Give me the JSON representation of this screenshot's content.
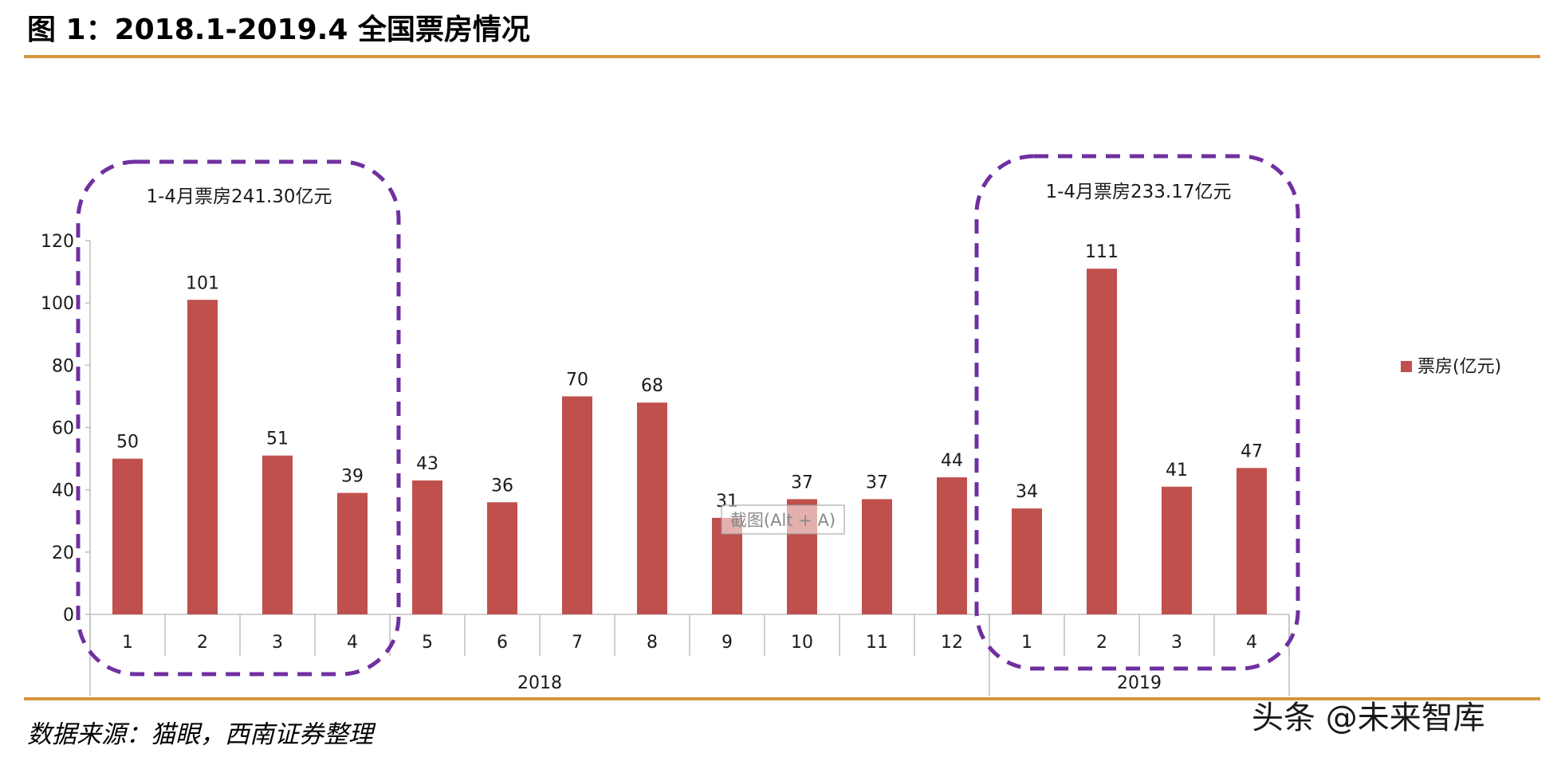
{
  "title": "图 1：2018.1-2019.4 全国票房情况",
  "source": "数据来源：猫眼，西南证券整理",
  "watermark": "头条 @未来智库",
  "tooltip": "截图(Alt + A)",
  "annotations": [
    "1-4月票房241.30亿元",
    "1-4月票房233.17亿元"
  ],
  "colors": {
    "bar": "#c0504d",
    "rule": "#d4963c",
    "dash": "#7030a0"
  },
  "chart_data": {
    "type": "bar",
    "categories": [
      "1",
      "2",
      "3",
      "4",
      "5",
      "6",
      "7",
      "8",
      "9",
      "10",
      "11",
      "12",
      "1",
      "2",
      "3",
      "4"
    ],
    "groups": [
      {
        "label": "2018",
        "count": 12
      },
      {
        "label": "2019",
        "count": 4
      }
    ],
    "series": [
      {
        "name": "票房(亿元)",
        "values": [
          50,
          101,
          51,
          39,
          43,
          36,
          70,
          68,
          31,
          37,
          37,
          44,
          34,
          111,
          41,
          47
        ]
      }
    ],
    "ylim": [
      0,
      120
    ],
    "yticks": [
      0,
      20,
      40,
      60,
      80,
      100,
      120
    ],
    "legend_position": "right"
  }
}
